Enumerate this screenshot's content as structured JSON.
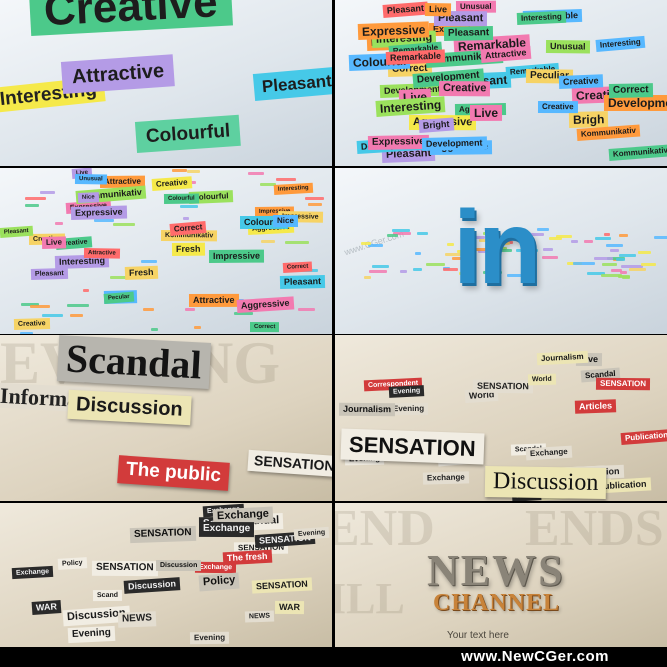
{
  "footer": {
    "site": "www.NewCGer.com"
  },
  "panel1": {
    "creative": "Creative",
    "attractive": "Attractive",
    "pleasant": "Pleasant",
    "interesting": "Interesting",
    "colourful": "Colourful"
  },
  "panel2": {
    "words": [
      "Interesting",
      "Creative",
      "Remarkable",
      "Development",
      "Kommunikativ",
      "Correct",
      "Pleasant",
      "Expressive",
      "Development",
      "Live",
      "Interesting",
      "Aggressive",
      "Pleasant",
      "Remarkable",
      "Aggressive",
      "Brigh",
      "Kommunikativ",
      "Unusual",
      "Remarkable",
      "Creative",
      "Interesting",
      "Creative",
      "Pleasant",
      "Kommunikativ",
      "Development",
      "Bright",
      "Interesting",
      "Unusual",
      "Aggressive",
      "Pleasant",
      "Remarkable",
      "Creative",
      "Expressive",
      "Peculiar",
      "Live",
      "Development",
      "Correct",
      "Creative",
      "Colourful",
      "Interesting",
      "Live",
      "Pleasant",
      "Development",
      "Remarkable",
      "Expressive",
      "Attractive"
    ]
  },
  "panel3": {
    "words": [
      "Attractive",
      "Expressive",
      "Kommunikativ",
      "Fresh",
      "Live",
      "Correct",
      "Impressive",
      "Expressive",
      "Colourful",
      "Pleasant",
      "Attractive",
      "Aggressive",
      "Interesting",
      "Fresh",
      "Interesting",
      "Impressive",
      "Pleasant",
      "Aggressive",
      "Creative",
      "Correct",
      "Colourful",
      "Fresh",
      "Creative",
      "Attractive",
      "Pecular",
      "Impressive",
      "Unusual",
      "Colourful",
      "Kommunikativ",
      "Correct",
      "Creative",
      "Nice",
      "Creative",
      "Nice",
      "Pleasant",
      "Live"
    ]
  },
  "panel4": {
    "logo": "in"
  },
  "panel5": {
    "scandal": "Scandal",
    "information": "Informat",
    "discussion": "Discussion",
    "public": "The public",
    "sensation": "SENSATION"
  },
  "panel6": {
    "words": [
      "SENSATION",
      "Scandal",
      "Publication",
      "Scandal",
      "Evening",
      "Exchange",
      "Publication",
      "Correspondent",
      "Live",
      "Information",
      "SENSATION",
      "Scandal",
      "Articles",
      "Journalism",
      "Exchange",
      "Scandal",
      "Evening",
      "Correspondent",
      "Evening",
      "World",
      "Journalism",
      "Publication",
      "Exchange",
      "SENSATION",
      "Evening",
      "World"
    ],
    "sensation": "SENSATION",
    "discussion": "Discussion"
  },
  "panel7": {
    "words": [
      "SENSATION",
      "Discussion",
      "NEWS",
      "WAR",
      "Exchange",
      "SENSATION",
      "The fresh",
      "Policy",
      "Evening",
      "SENSATION",
      "Scandal",
      "Exchange",
      "Discussion",
      "Scandal",
      "Evening",
      "Exchange",
      "SENSATION",
      "Scand",
      "Exchange",
      "Discussion",
      "Policy",
      "NEWS",
      "SENSATION",
      "WAR",
      "Evening",
      "Exchange"
    ]
  },
  "panel8": {
    "title": "NEWS",
    "subtitle": "CHANNEL",
    "tagline": "Your text here"
  }
}
